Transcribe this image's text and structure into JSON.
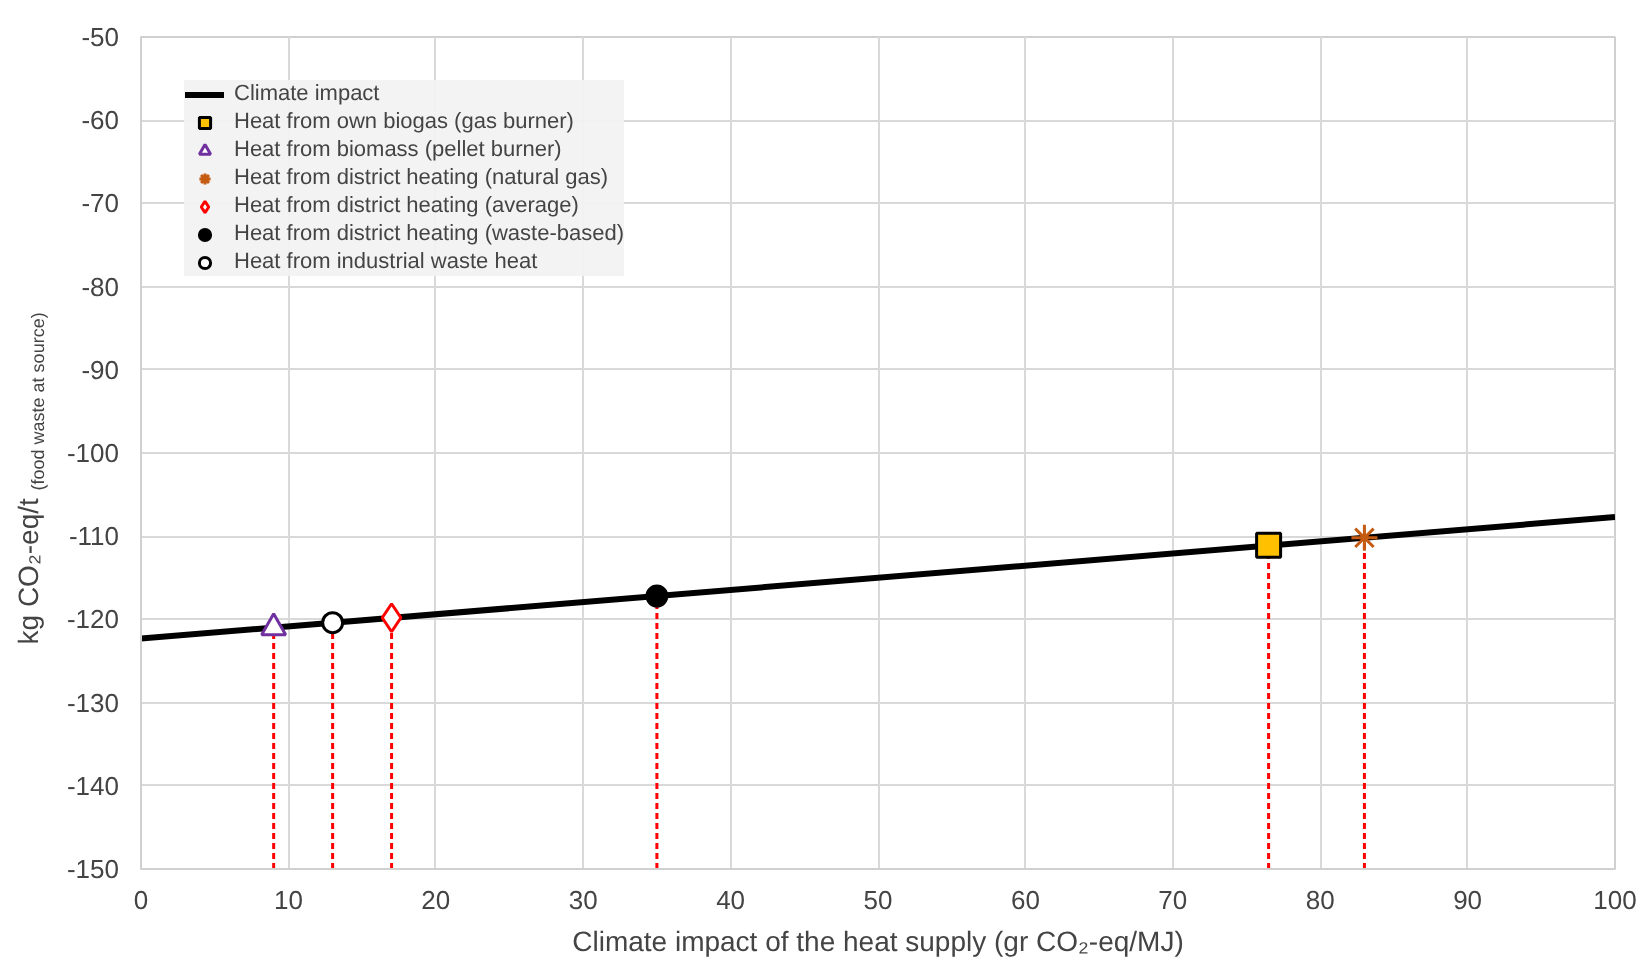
{
  "chart_data": {
    "type": "scatter",
    "xlabel": "Climate impact of the heat supply (gr CO₂-eq/MJ)",
    "ylabel": "kg CO₂-eq/t $_{(food waste at source)}$",
    "xlim": [
      0,
      100
    ],
    "ylim": [
      -150,
      -50
    ],
    "xticks": [
      0,
      10,
      20,
      30,
      40,
      50,
      60,
      70,
      80,
      90,
      100
    ],
    "yticks": [
      -150,
      -140,
      -130,
      -120,
      -110,
      -100,
      -90,
      -80,
      -70,
      -60,
      -50
    ],
    "grid": true,
    "legend": "top left",
    "series": [
      {
        "name": "Climate impact",
        "type": "line",
        "color": "#000000",
        "marker": "none",
        "line_style": "solid",
        "x": [
          0,
          100
        ],
        "values": [
          -122.3,
          -107.7
        ]
      },
      {
        "name": "Heat from own biogas (gas burner)",
        "color": "#ffc000",
        "marker": "square",
        "x": [
          76.5
        ],
        "values": [
          -111.1
        ],
        "errors": [
          [
            -150,
            -111.1
          ]
        ]
      },
      {
        "name": "Heat from biomass (pellet burner)",
        "color": "#7030a0",
        "marker": "triangle",
        "x": [
          9
        ],
        "values": [
          -121.0
        ],
        "errors": [
          [
            -150,
            -121.0
          ]
        ]
      },
      {
        "name": "Heat from district heating (natural gas)",
        "color": "#c55a11",
        "marker": "cross",
        "x": [
          83
        ],
        "values": [
          -110.2
        ],
        "errors": [
          [
            -150,
            -110.2
          ]
        ]
      },
      {
        "name": "Heat from district heating (average)",
        "color": "#ff0000",
        "marker": "diamond",
        "x": [
          17
        ],
        "values": [
          -119.8
        ],
        "errors": [
          [
            -150,
            -119.8
          ]
        ]
      },
      {
        "name": "Heat from district heating (waste-based)",
        "color": "#000000",
        "marker": "circle",
        "x": [
          35
        ],
        "values": [
          -117.2
        ],
        "errors": [
          [
            -150,
            -117.2
          ]
        ]
      },
      {
        "name": "Heat from industrial waste heat",
        "color": "#ffffff",
        "marker": "circle",
        "x": [
          13
        ],
        "values": [
          -120.4
        ],
        "errors": [
          [
            -150,
            -120.4
          ]
        ]
      }
    ]
  }
}
